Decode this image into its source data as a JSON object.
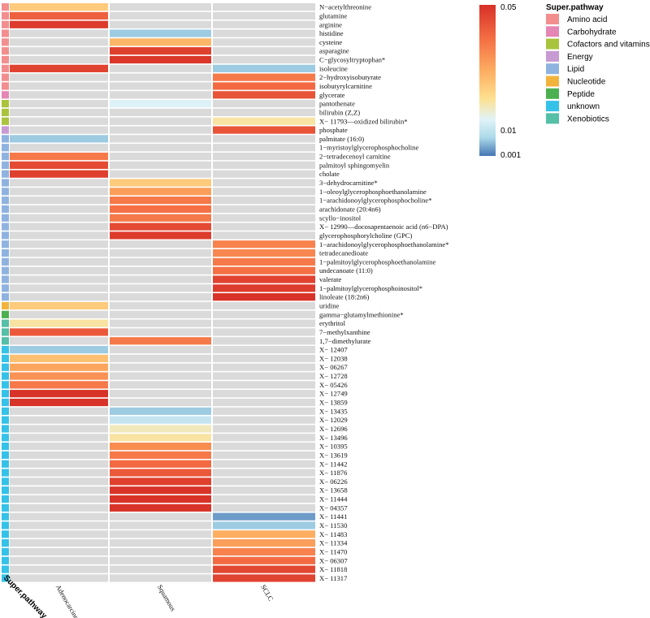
{
  "chart_data": {
    "type": "heatmap",
    "columns": [
      "Adenocarcinoma",
      "Squamous",
      "SCLC"
    ],
    "row_axis_title": "Super.pathway",
    "scale": {
      "max_label": "0.05",
      "mid_label": "0.01",
      "min_label": "0.001",
      "max": 0.05,
      "mid": 0.01,
      "min": 0.001
    },
    "pathway_legend_title": "Super.pathway",
    "pathways": [
      {
        "name": "Amino acid",
        "color": "#f28e8e"
      },
      {
        "name": "Carbohydrate",
        "color": "#e586b4"
      },
      {
        "name": "Cofactors and vitamins",
        "color": "#a9c43c"
      },
      {
        "name": "Energy",
        "color": "#c79ad3"
      },
      {
        "name": "Lipid",
        "color": "#8fb3e0"
      },
      {
        "name": "Nucleotide",
        "color": "#f2b33d"
      },
      {
        "name": "Peptide",
        "color": "#4cb050"
      },
      {
        "name": "unknown",
        "color": "#35c2e8"
      },
      {
        "name": "Xenobiotics",
        "color": "#55bfa7"
      }
    ],
    "na_color": "#dadada",
    "rows": [
      {
        "label": "N−acetylthreonine",
        "pathway": "Amino acid",
        "values": [
          0.006,
          null,
          null
        ]
      },
      {
        "label": "glutamine",
        "pathway": "Amino acid",
        "values": [
          0.025,
          null,
          null
        ]
      },
      {
        "label": "arginine",
        "pathway": "Amino acid",
        "values": [
          0.042,
          null,
          null
        ]
      },
      {
        "label": "histidine",
        "pathway": "Amino acid",
        "values": [
          null,
          0.0015,
          null
        ]
      },
      {
        "label": "cysteine",
        "pathway": "Amino acid",
        "values": [
          null,
          0.008,
          null
        ]
      },
      {
        "label": "asparagine",
        "pathway": "Amino acid",
        "values": [
          null,
          0.04,
          null
        ]
      },
      {
        "label": "C−glycosyltryptophan*",
        "pathway": "Amino acid",
        "values": [
          null,
          0.046,
          null
        ]
      },
      {
        "label": "isoleucine",
        "pathway": "Amino acid",
        "values": [
          0.038,
          null,
          0.0015
        ]
      },
      {
        "label": "2−hydroxyisobutyrate",
        "pathway": "Amino acid",
        "values": [
          null,
          null,
          0.018
        ]
      },
      {
        "label": "isobutyrylcarnitine",
        "pathway": "Amino acid",
        "values": [
          null,
          null,
          0.022
        ]
      },
      {
        "label": "glycerate",
        "pathway": "Carbohydrate",
        "values": [
          null,
          null,
          0.03
        ]
      },
      {
        "label": "pantothenate",
        "pathway": "Cofactors and vitamins",
        "values": [
          null,
          0.0025,
          null
        ]
      },
      {
        "label": "bilirubin (Z,Z)",
        "pathway": "Cofactors and vitamins",
        "values": [
          null,
          null,
          null
        ]
      },
      {
        "label": "X− 11793—oxidized bilirubin*",
        "pathway": "Cofactors and vitamins",
        "values": [
          null,
          null,
          0.004
        ]
      },
      {
        "label": "phosphate",
        "pathway": "Energy",
        "values": [
          null,
          null,
          0.03
        ]
      },
      {
        "label": "palmitate (16:0)",
        "pathway": "Lipid",
        "values": [
          0.0015,
          null,
          null
        ]
      },
      {
        "label": "1−myristoylglycerophosphocholine",
        "pathway": "Lipid",
        "values": [
          null,
          null,
          null
        ]
      },
      {
        "label": "2−tetradecenoyl carnitine",
        "pathway": "Lipid",
        "values": [
          0.018,
          null,
          null
        ]
      },
      {
        "label": "palmitoyl sphingomyelin",
        "pathway": "Lipid",
        "values": [
          0.035,
          null,
          null
        ]
      },
      {
        "label": "cholate",
        "pathway": "Lipid",
        "values": [
          0.04,
          null,
          null
        ]
      },
      {
        "label": "3−dehydrocarnitine*",
        "pathway": "Lipid",
        "values": [
          null,
          0.006,
          null
        ]
      },
      {
        "label": "1−oleoylglycerophosphoethanolamine",
        "pathway": "Lipid",
        "values": [
          null,
          0.011,
          null
        ]
      },
      {
        "label": "1−arachidonoylglycerophosphocholine*",
        "pathway": "Lipid",
        "values": [
          null,
          0.018,
          null
        ]
      },
      {
        "label": "arachidonate (20:4n6)",
        "pathway": "Lipid",
        "values": [
          null,
          0.02,
          null
        ]
      },
      {
        "label": "scyllo−inositol",
        "pathway": "Lipid",
        "values": [
          null,
          0.018,
          null
        ]
      },
      {
        "label": "X− 12990—docosapentaenoic acid (n6−DPA)",
        "pathway": "Lipid",
        "values": [
          null,
          0.034,
          null
        ]
      },
      {
        "label": "glycerophosphorylcholine (GPC)",
        "pathway": "Lipid",
        "values": [
          null,
          0.042,
          null
        ]
      },
      {
        "label": "1−arachidonoylglycerophosphoethanolamine*",
        "pathway": "Lipid",
        "values": [
          null,
          null,
          0.016
        ]
      },
      {
        "label": "tetradecanedioate",
        "pathway": "Lipid",
        "values": [
          null,
          null,
          0.015
        ]
      },
      {
        "label": "1−palmitoylglycerophosphoethanolamine",
        "pathway": "Lipid",
        "values": [
          null,
          null,
          0.018
        ]
      },
      {
        "label": "undecanoate (11:0)",
        "pathway": "Lipid",
        "values": [
          null,
          null,
          0.02
        ]
      },
      {
        "label": "valerate",
        "pathway": "Lipid",
        "values": [
          null,
          null,
          0.038
        ]
      },
      {
        "label": "1−palmitoylglycerophosphoinositol*",
        "pathway": "Lipid",
        "values": [
          null,
          null,
          0.042
        ]
      },
      {
        "label": "linoleate (18:2n6)",
        "pathway": "Lipid",
        "values": [
          null,
          null,
          0.048
        ]
      },
      {
        "label": "uridine",
        "pathway": "Nucleotide",
        "values": [
          0.006,
          null,
          null
        ]
      },
      {
        "label": "gamma−glutamylmethionine*",
        "pathway": "Peptide",
        "values": [
          null,
          null,
          null
        ]
      },
      {
        "label": "erythritol",
        "pathway": "Xenobiotics",
        "values": [
          0.004,
          null,
          null
        ]
      },
      {
        "label": "7−methylxanthine",
        "pathway": "Xenobiotics",
        "values": [
          0.028,
          null,
          null
        ]
      },
      {
        "label": "1,7−dimethylurate",
        "pathway": "Xenobiotics",
        "values": [
          null,
          0.018,
          null
        ]
      },
      {
        "label": "X− 12407",
        "pathway": "unknown",
        "values": [
          0.0015,
          null,
          null
        ]
      },
      {
        "label": "X− 12038",
        "pathway": "unknown",
        "values": [
          0.007,
          null,
          null
        ]
      },
      {
        "label": "X− 06267",
        "pathway": "unknown",
        "values": [
          0.01,
          null,
          null
        ]
      },
      {
        "label": "X− 12728",
        "pathway": "unknown",
        "values": [
          0.013,
          null,
          null
        ]
      },
      {
        "label": "X− 05426",
        "pathway": "unknown",
        "values": [
          0.018,
          null,
          null
        ]
      },
      {
        "label": "X− 12749",
        "pathway": "unknown",
        "values": [
          0.048,
          null,
          null
        ]
      },
      {
        "label": "X− 13859",
        "pathway": "unknown",
        "values": [
          0.048,
          null,
          null
        ]
      },
      {
        "label": "X− 13435",
        "pathway": "unknown",
        "values": [
          null,
          0.0015,
          null
        ]
      },
      {
        "label": "X− 12029",
        "pathway": "unknown",
        "values": [
          null,
          0.002,
          null
        ]
      },
      {
        "label": "X− 12696",
        "pathway": "unknown",
        "values": [
          null,
          0.0035,
          null
        ]
      },
      {
        "label": "X− 13496",
        "pathway": "unknown",
        "values": [
          null,
          0.004,
          null
        ]
      },
      {
        "label": "X− 10395",
        "pathway": "unknown",
        "values": [
          null,
          0.014,
          null
        ]
      },
      {
        "label": "X− 13619",
        "pathway": "unknown",
        "values": [
          null,
          0.018,
          null
        ]
      },
      {
        "label": "X− 11442",
        "pathway": "unknown",
        "values": [
          null,
          0.022,
          null
        ]
      },
      {
        "label": "X− 11876",
        "pathway": "unknown",
        "values": [
          null,
          0.028,
          null
        ]
      },
      {
        "label": "X− 06226",
        "pathway": "unknown",
        "values": [
          null,
          0.04,
          null
        ]
      },
      {
        "label": "X− 13658",
        "pathway": "unknown",
        "values": [
          null,
          0.047,
          null
        ]
      },
      {
        "label": "X− 11444",
        "pathway": "unknown",
        "values": [
          null,
          0.048,
          null
        ]
      },
      {
        "label": "X− 04357",
        "pathway": "unknown",
        "values": [
          null,
          0.048,
          null
        ]
      },
      {
        "label": "X− 11441",
        "pathway": "unknown",
        "values": [
          null,
          null,
          0.0012
        ]
      },
      {
        "label": "X− 11530",
        "pathway": "unknown",
        "values": [
          null,
          null,
          0.0015
        ]
      },
      {
        "label": "X− 11483",
        "pathway": "unknown",
        "values": [
          null,
          null,
          0.009
        ]
      },
      {
        "label": "X− 11334",
        "pathway": "unknown",
        "values": [
          null,
          null,
          0.011
        ]
      },
      {
        "label": "X− 11470",
        "pathway": "unknown",
        "values": [
          null,
          null,
          0.016
        ]
      },
      {
        "label": "X− 06307",
        "pathway": "unknown",
        "values": [
          null,
          null,
          0.022
        ]
      },
      {
        "label": "X− 11818",
        "pathway": "unknown",
        "values": [
          null,
          null,
          0.036
        ]
      },
      {
        "label": "X− 11317",
        "pathway": "unknown",
        "values": [
          null,
          null,
          0.038
        ]
      }
    ]
  }
}
